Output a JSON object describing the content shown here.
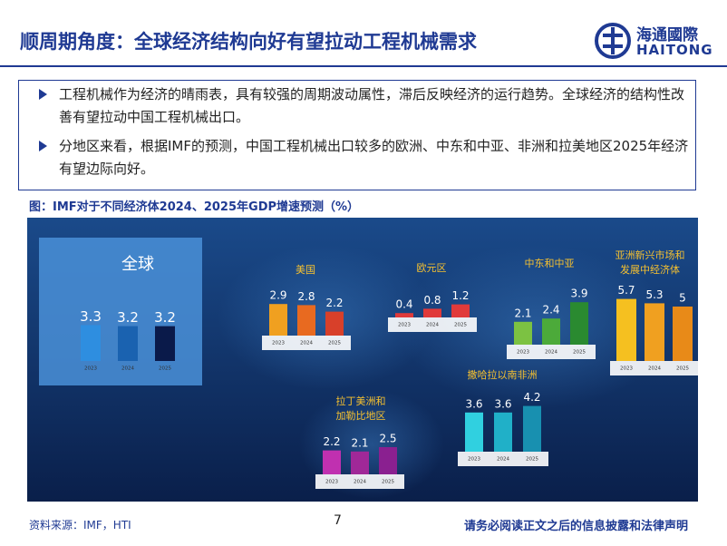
{
  "header": {
    "title": "顺周期角度：全球经济结构向好有望拉动工程机械需求",
    "logo_cn": "海通國際",
    "logo_en": "HAITONG"
  },
  "bullets": [
    "工程机械作为经济的晴雨表，具有较强的周期波动属性，滞后反映经济的运行趋势。全球经济的结构性改善有望拉动中国工程机械出口。",
    "分地区来看，根据IMF的预测，中国工程机械出口较多的欧洲、中东和中亚、非洲和拉美地区2025年经济有望边际向好。"
  ],
  "figure": {
    "caption": "图：IMF对于不同经济体2024、2025年GDP增速预测（%）",
    "years": [
      "2023",
      "2024",
      "2025"
    ],
    "panels": [
      {
        "title_lines": [
          "全球"
        ],
        "values": [
          3.3,
          3.2,
          3.2
        ],
        "colors": [
          "#2e8ee0",
          "#1a62b0",
          "#0a1a4a"
        ]
      },
      {
        "title_lines": [
          "美国"
        ],
        "values": [
          2.9,
          2.8,
          2.2
        ],
        "colors": [
          "#f0a020",
          "#e86a20",
          "#d8402a"
        ]
      },
      {
        "title_lines": [
          "欧元区"
        ],
        "values": [
          0.4,
          0.8,
          1.2
        ],
        "colors": [
          "#e03a3a",
          "#e03a3a",
          "#e03a3a"
        ]
      },
      {
        "title_lines": [
          "中东和中亚"
        ],
        "values": [
          2.1,
          2.4,
          3.9
        ],
        "colors": [
          "#7cc242",
          "#4caa3a",
          "#2a8a30"
        ]
      },
      {
        "title_lines": [
          "亚洲新兴市场和",
          "发展中经济体"
        ],
        "values": [
          5.7,
          5.3,
          5.0
        ],
        "colors": [
          "#f5c020",
          "#f0a020",
          "#e88a18"
        ]
      },
      {
        "title_lines": [
          "撒哈拉以南非洲"
        ],
        "values": [
          3.6,
          3.6,
          4.2
        ],
        "colors": [
          "#30d0e0",
          "#20b0c8",
          "#1890b0"
        ]
      },
      {
        "title_lines": [
          "拉丁美洲和",
          "加勒比地区"
        ],
        "values": [
          2.2,
          2.1,
          2.5
        ],
        "colors": [
          "#c030b0",
          "#a02898",
          "#8a2090"
        ]
      }
    ]
  },
  "footer": {
    "source": "资料来源：IMF，HTI",
    "page": "7",
    "disclaimer": "请务必阅读正文之后的信息披露和法律声明"
  }
}
